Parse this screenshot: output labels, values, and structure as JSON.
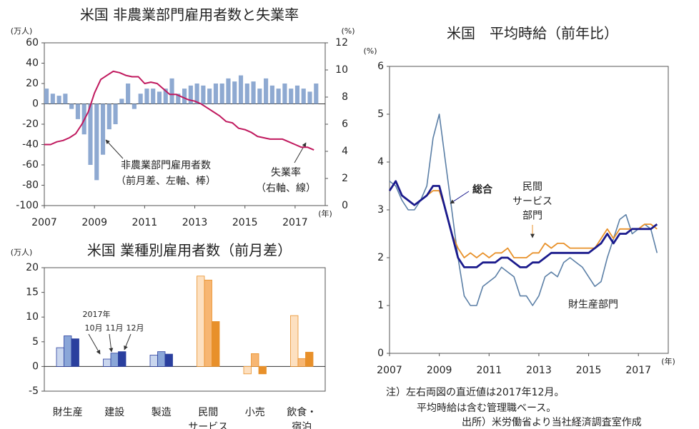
{
  "chart_data": [
    {
      "type": "combo",
      "title": "米国 非農業部門雇用者数と失業率",
      "y_label": "(万人)",
      "y2_label": "(%)",
      "x_label": "(年)",
      "x": [
        2007,
        2007.25,
        2007.5,
        2007.75,
        2008,
        2008.25,
        2008.5,
        2008.75,
        2009,
        2009.25,
        2009.5,
        2009.75,
        2010,
        2010.25,
        2010.5,
        2010.75,
        2011,
        2011.25,
        2011.5,
        2011.75,
        2012,
        2012.25,
        2012.5,
        2012.75,
        2013,
        2013.25,
        2013.5,
        2013.75,
        2014,
        2014.25,
        2014.5,
        2014.75,
        2015,
        2015.25,
        2015.5,
        2015.75,
        2016,
        2016.25,
        2016.5,
        2016.75,
        2017,
        2017.25,
        2017.5,
        2017.75
      ],
      "series": [
        {
          "name": "非農業部門雇用者数",
          "annotation": "（前月差、左軸、棒）",
          "kind": "bar",
          "color": "#8ea9d1",
          "label_color": "#4a6e9c",
          "values": [
            15,
            10,
            8,
            10,
            -5,
            -15,
            -30,
            -60,
            -75,
            -50,
            -25,
            -20,
            5,
            20,
            -5,
            10,
            15,
            15,
            12,
            15,
            25,
            10,
            15,
            18,
            20,
            18,
            15,
            20,
            20,
            25,
            22,
            28,
            20,
            22,
            15,
            25,
            18,
            15,
            20,
            15,
            18,
            15,
            12,
            20
          ]
        },
        {
          "name": "失業率",
          "annotation": "（右軸、線）",
          "kind": "line",
          "axis": "y2",
          "color": "#c0195e",
          "values": [
            4.5,
            4.5,
            4.7,
            4.8,
            5.0,
            5.3,
            6.0,
            6.9,
            8.3,
            9.3,
            9.6,
            9.9,
            9.8,
            9.6,
            9.5,
            9.5,
            9.0,
            9.1,
            9.0,
            8.6,
            8.2,
            8.2,
            8.0,
            7.8,
            7.7,
            7.5,
            7.2,
            6.9,
            6.6,
            6.2,
            6.1,
            5.7,
            5.6,
            5.4,
            5.1,
            5.0,
            4.9,
            4.9,
            4.9,
            4.7,
            4.5,
            4.3,
            4.3,
            4.1
          ]
        }
      ],
      "xlim": [
        2007,
        2018.2
      ],
      "xticks": [
        2007,
        2009,
        2011,
        2013,
        2015,
        2017
      ],
      "ylim": [
        -100,
        60
      ],
      "yticks": [
        -100,
        -80,
        -60,
        -40,
        -20,
        0,
        20,
        40,
        60
      ],
      "y2lim": [
        0,
        12
      ],
      "y2ticks": [
        0,
        2,
        4,
        6,
        8,
        10,
        12
      ]
    },
    {
      "type": "bar",
      "title": "米国 業種別雇用者数（前月差）",
      "y_label": "(万人)",
      "annotation": "2017年",
      "categories": [
        "財生産",
        "建設",
        "製造",
        "民間\nサービス",
        "小売",
        "飲食・\n宿泊"
      ],
      "series": [
        {
          "name": "10月",
          "colors": [
            "#c9d6ee",
            "#c9d6ee",
            "#c9d6ee",
            "#fde0c0",
            "#fde0c0",
            "#fde0c0"
          ],
          "values": [
            3.8,
            1.5,
            2.3,
            18.3,
            -1.5,
            10.3
          ]
        },
        {
          "name": "11月",
          "colors": [
            "#8aa6d8",
            "#8aa6d8",
            "#8aa6d8",
            "#f7b672",
            "#f7b672",
            "#f7b672"
          ],
          "values": [
            6.2,
            2.7,
            3.0,
            17.5,
            2.6,
            1.6
          ]
        },
        {
          "name": "12月",
          "colors": [
            "#2a3f9e",
            "#2a3f9e",
            "#2a3f9e",
            "#e8902a",
            "#e8902a",
            "#e8902a"
          ],
          "values": [
            5.6,
            3.0,
            2.5,
            9.1,
            -1.5,
            2.9
          ]
        }
      ],
      "ylim": [
        -5,
        20
      ],
      "yticks": [
        -5,
        0,
        5,
        10,
        15,
        20
      ]
    },
    {
      "type": "line",
      "title": "米国　平均時給（前年比）",
      "y_label": "(%)",
      "x_label": "(年)",
      "x": [
        2007,
        2007.25,
        2007.5,
        2007.75,
        2008,
        2008.25,
        2008.5,
        2008.75,
        2009,
        2009.25,
        2009.5,
        2009.75,
        2010,
        2010.25,
        2010.5,
        2010.75,
        2011,
        2011.25,
        2011.5,
        2011.75,
        2012,
        2012.25,
        2012.5,
        2012.75,
        2013,
        2013.25,
        2013.5,
        2013.75,
        2014,
        2014.25,
        2014.5,
        2014.75,
        2015,
        2015.25,
        2015.5,
        2015.75,
        2016,
        2016.25,
        2016.5,
        2016.75,
        2017,
        2017.25,
        2017.5,
        2017.75
      ],
      "series": [
        {
          "name": "財生産部門",
          "color": "#5b7fa6",
          "width": 1.6,
          "values": [
            3.6,
            3.5,
            3.2,
            3.0,
            3.0,
            3.2,
            3.5,
            4.5,
            5.0,
            4.0,
            3.0,
            2.0,
            1.2,
            1.0,
            1.0,
            1.4,
            1.5,
            1.6,
            1.8,
            1.7,
            1.6,
            1.2,
            1.2,
            1.0,
            1.2,
            1.6,
            1.7,
            1.6,
            1.9,
            2.0,
            1.9,
            1.8,
            1.6,
            1.4,
            1.5,
            2.0,
            2.4,
            2.8,
            2.9,
            2.5,
            2.6,
            2.7,
            2.6,
            2.1
          ]
        },
        {
          "name": "民間\nサービス\n部門",
          "color": "#e8912a",
          "width": 1.8,
          "values": [
            3.4,
            3.6,
            3.3,
            3.2,
            3.1,
            3.2,
            3.3,
            3.4,
            3.4,
            3.0,
            2.5,
            2.2,
            2.0,
            2.1,
            2.0,
            2.1,
            2.0,
            2.1,
            2.1,
            2.2,
            2.0,
            2.0,
            2.0,
            2.1,
            2.1,
            2.3,
            2.2,
            2.3,
            2.3,
            2.2,
            2.2,
            2.2,
            2.2,
            2.2,
            2.4,
            2.6,
            2.4,
            2.6,
            2.6,
            2.6,
            2.6,
            2.7,
            2.7,
            2.6
          ]
        },
        {
          "name": "総合",
          "color": "#1a1a8c",
          "width": 2.8,
          "values": [
            3.4,
            3.6,
            3.3,
            3.2,
            3.1,
            3.2,
            3.3,
            3.5,
            3.5,
            3.0,
            2.5,
            2.0,
            1.8,
            1.8,
            1.8,
            1.9,
            1.9,
            1.9,
            2.0,
            2.0,
            1.9,
            1.8,
            1.8,
            1.9,
            1.9,
            2.0,
            2.1,
            2.1,
            2.1,
            2.1,
            2.1,
            2.1,
            2.1,
            2.2,
            2.3,
            2.5,
            2.3,
            2.5,
            2.5,
            2.6,
            2.6,
            2.6,
            2.6,
            2.7
          ]
        }
      ],
      "xlim": [
        2007,
        2018.2
      ],
      "xticks": [
        2007,
        2009,
        2011,
        2013,
        2015,
        2017
      ],
      "ylim": [
        0,
        6
      ],
      "yticks": [
        0,
        1,
        2,
        3,
        4,
        5,
        6
      ]
    }
  ],
  "notes": [
    "注）左右両図の直近値は2017年12月。",
    "平均時給は含む管理職ベース。",
    "出所）米労働省より当社経済調査室作成"
  ]
}
